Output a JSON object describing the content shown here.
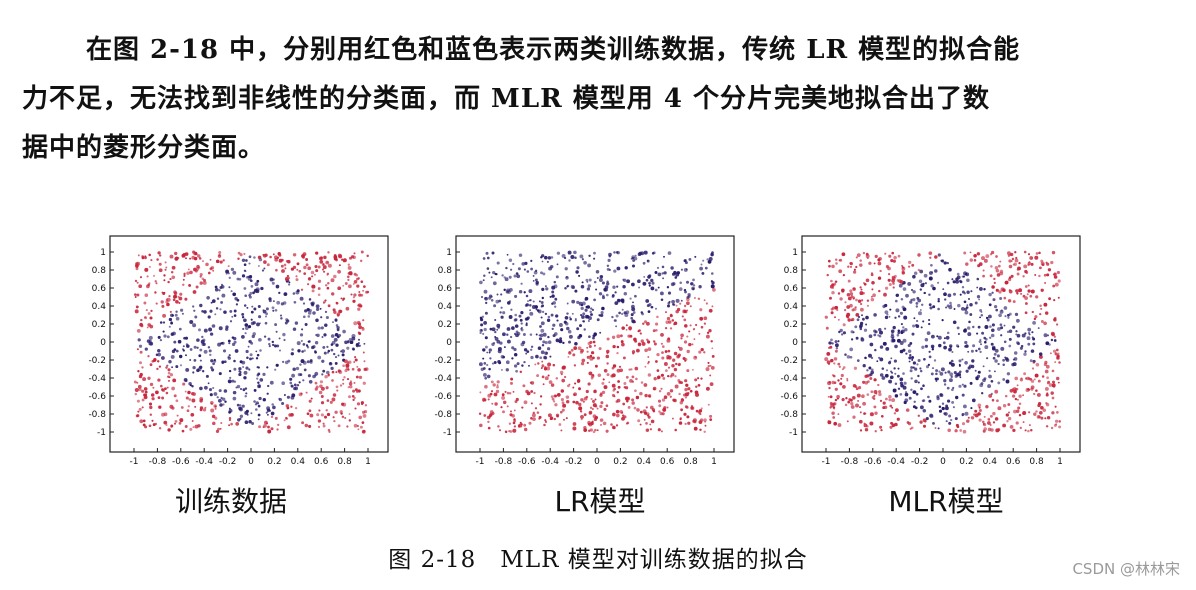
{
  "paragraph": {
    "line1": "在图 2-18 中，分别用红色和蓝色表示两类训练数据，传统 LR 模型的拟合能",
    "line2": "力不足，无法找到非线性的分类面，而 MLR 模型用 4 个分片完美地拟合出了数",
    "line3": "据中的菱形分类面。"
  },
  "colors": {
    "red_class": "#c8243a",
    "blue_class": "#2a1b6a",
    "frame": "#222222"
  },
  "chart_data": [
    {
      "type": "scatter",
      "title": "训练数据",
      "xlim": [
        -1,
        1
      ],
      "ylim": [
        -1,
        1
      ],
      "xticks": [
        "-1",
        "-0.8",
        "-0.6",
        "-0.4",
        "-0.2",
        "0",
        "0.2",
        "0.4",
        "0.6",
        "0.8",
        "1"
      ],
      "yticks": [
        "1",
        "0.8",
        "0.6",
        "0.4",
        "0.2",
        "0",
        "-0.2",
        "-0.4",
        "-0.6",
        "-0.8",
        "-1"
      ],
      "series": [
        {
          "region": "|x|+|y|<1",
          "color": "#2a1b6a"
        },
        {
          "region": "|x|+|y|>=1",
          "color": "#c8243a"
        }
      ],
      "boundary": "diamond"
    },
    {
      "type": "scatter",
      "title": "LR模型",
      "xlim": [
        -1,
        1
      ],
      "ylim": [
        -1,
        1
      ],
      "xticks": [
        "-1",
        "-0.8",
        "-0.6",
        "-0.4",
        "-0.2",
        "0",
        "0.2",
        "0.4",
        "0.6",
        "0.8",
        "1"
      ],
      "yticks": [
        "1",
        "0.8",
        "0.6",
        "0.4",
        "0.2",
        "0",
        "-0.2",
        "-0.4",
        "-0.6",
        "-0.8",
        "-1"
      ],
      "series": [
        {
          "region": "upper-left of linear boundary",
          "color": "#2a1b6a"
        },
        {
          "region": "lower-right of linear boundary",
          "color": "#c8243a"
        }
      ],
      "boundary": "linear"
    },
    {
      "type": "scatter",
      "title": "MLR模型",
      "xlim": [
        -1,
        1
      ],
      "ylim": [
        -1,
        1
      ],
      "xticks": [
        "-1",
        "-0.8",
        "-0.6",
        "-0.4",
        "-0.2",
        "0",
        "0.2",
        "0.4",
        "0.6",
        "0.8",
        "1"
      ],
      "yticks": [
        "1",
        "0.8",
        "0.6",
        "0.4",
        "0.2",
        "0",
        "-0.2",
        "-0.4",
        "-0.6",
        "-0.8",
        "-1"
      ],
      "series": [
        {
          "region": "|x|+|y|<1",
          "color": "#2a1b6a"
        },
        {
          "region": "|x|+|y|>=1",
          "color": "#c8243a"
        }
      ],
      "boundary": "diamond"
    }
  ],
  "figure_caption": "图 2-18　MLR 模型对训练数据的拟合",
  "watermark": "CSDN @林林宋"
}
